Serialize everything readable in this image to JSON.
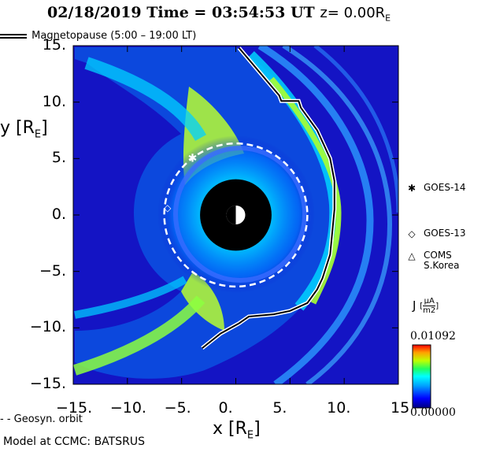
{
  "title": {
    "date": "02/18/2019",
    "time_label": "Time =",
    "time": "03:54:53",
    "unit": "UT",
    "z_label": "z= 0.00R",
    "z_sub": "E"
  },
  "legend": {
    "magnetopause": "Magnetopause (5:00 – 19:00 LT)",
    "geosyn": "- -  Geosyn. orbit"
  },
  "axes": {
    "ylabel": "y [R",
    "ylabel_sub": "E",
    "ylabel_end": "]",
    "xlabel": "x [R",
    "xlabel_sub": "E",
    "xlabel_end": "]",
    "x_ticks": [
      "−15.",
      "−10.",
      "−5.",
      "0.",
      "5.",
      "10.",
      "15"
    ],
    "y_ticks": [
      "15.",
      "10.",
      "5.",
      "0.",
      "−5.",
      "−10.",
      "−15."
    ]
  },
  "satellites": [
    {
      "symbol": "✱",
      "label": "GOES-14"
    },
    {
      "symbol": "◇",
      "label": "GOES-13"
    },
    {
      "symbol": "△",
      "label": "COMS\nS.Korea"
    }
  ],
  "colorbar": {
    "label": "J",
    "unit_num": "μA",
    "unit_den": "m2",
    "max": "0.01092",
    "min": "0.00000"
  },
  "credit": "Model at CCMC: BATSRUS",
  "chart_data": {
    "type": "heatmap",
    "quantity": "J",
    "xlim": [
      -15,
      15
    ],
    "ylim": [
      -15,
      15
    ],
    "colorbar_range": [
      0.0,
      0.01092
    ],
    "colors": {
      "background": "#1010c8",
      "field": "#00b8ff",
      "high": "#c8ff20",
      "earth": "#000000"
    },
    "magnetopause": {
      "x": [
        0.3,
        4.0,
        4.2,
        5.8,
        6.0,
        7.5,
        8.7,
        9.1,
        9.1,
        8.7,
        8.0,
        7.5,
        6.6,
        5.0,
        3.5,
        1.2,
        0.3,
        -1.4,
        -3.1
      ],
      "y": [
        14.8,
        10.6,
        10.1,
        10.1,
        9.5,
        7.5,
        5.0,
        3.0,
        0.5,
        -3.5,
        -5.6,
        -6.6,
        -7.8,
        -8.5,
        -8.8,
        -9.0,
        -9.6,
        -10.5,
        -11.8
      ]
    },
    "geosyn_orbit_radius": 6.6,
    "earth_radius": 3.3,
    "satellite_positions": [
      {
        "name": "GOES-14",
        "x": -4.0,
        "y": 5.0
      },
      {
        "name": "GOES-13",
        "x": -6.3,
        "y": 0.6
      }
    ]
  }
}
